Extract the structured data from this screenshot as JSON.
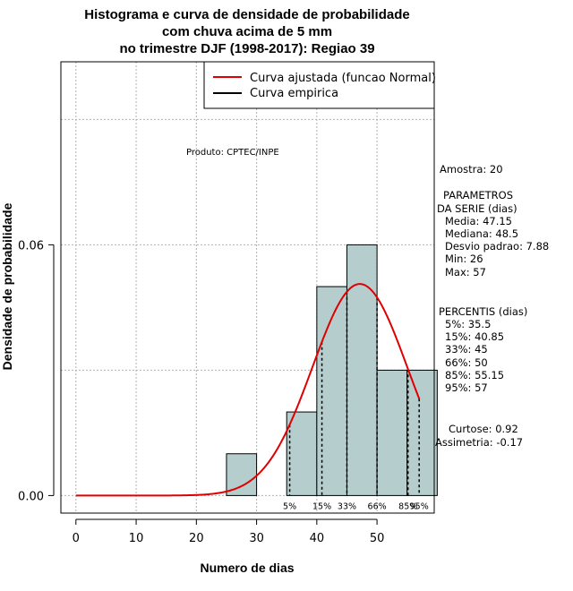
{
  "chart_data": {
    "type": "bar",
    "title_lines": [
      "Histograma e curva de densidade de probabilidade",
      "com chuva acima de 5 mm",
      "no trimestre DJF (1998-2017): Regiao 39"
    ],
    "xlabel": "Numero de dias",
    "ylabel": "Densidade de probabilidade",
    "xlim": [
      -2.5,
      59.5
    ],
    "ylim": [
      -0.0042,
      0.1038
    ],
    "x_ticks": [
      0,
      10,
      20,
      30,
      40,
      50
    ],
    "y_ticks": [
      0.0,
      0.06
    ],
    "y_tick_labels": [
      "0.00",
      "0.06"
    ],
    "grid": true,
    "bins": [
      {
        "x0": 25,
        "x1": 30,
        "density": 0.01
      },
      {
        "x0": 30,
        "x1": 35,
        "density": 0.0
      },
      {
        "x0": 35,
        "x1": 40,
        "density": 0.02
      },
      {
        "x0": 40,
        "x1": 45,
        "density": 0.05
      },
      {
        "x0": 45,
        "x1": 50,
        "density": 0.06
      },
      {
        "x0": 50,
        "x1": 55,
        "density": 0.03
      },
      {
        "x0": 55,
        "x1": 60,
        "density": 0.03
      }
    ],
    "bar_color": "#b5cdcd",
    "normal_fit": {
      "mean": 47.15,
      "sd": 7.88,
      "x_start": 0,
      "x_end": 57,
      "color": "#e00000"
    },
    "percentile_lines": [
      {
        "label": "5%",
        "x": 35.5
      },
      {
        "label": "15%",
        "x": 40.85
      },
      {
        "label": "33%",
        "x": 45
      },
      {
        "label": "66%",
        "x": 50
      },
      {
        "label": "85%",
        "x": 55.15
      },
      {
        "label": "95%",
        "x": 57
      }
    ],
    "legend": [
      {
        "label": "Curva ajustada (funcao Normal)",
        "color": "#e00000"
      },
      {
        "label": "Curva empirica",
        "color": "#000000"
      }
    ],
    "legend_position": "top-right",
    "product_label": "Produto: CPTEC/INPE",
    "stats": {
      "amostra": "Amostra: 20",
      "param_lines": [
        "PARAMETROS",
        "DA SERIE (dias)"
      ],
      "values": [
        "Media: 47.15",
        "Mediana: 48.5",
        "Desvio padrao: 7.88",
        "Min: 26",
        "Max: 57"
      ],
      "percentis_title": "PERCENTIS (dias)",
      "percentis": [
        "5%: 35.5",
        "15%: 40.85",
        "33%: 45",
        "66%: 50",
        "85%: 55.15",
        "95%: 57"
      ],
      "curtose": "Curtose: 0.92",
      "assimetria": "Assimetria: -0.17"
    }
  }
}
